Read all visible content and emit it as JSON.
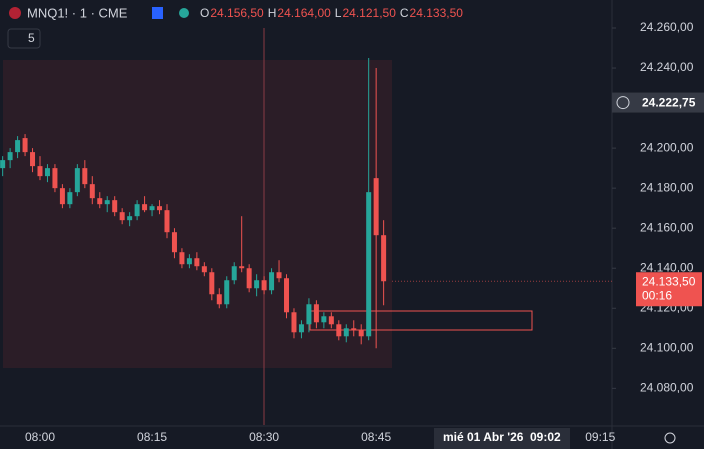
{
  "header": {
    "symbol": "MNQ1! · 1 · CME",
    "ohlc": [
      {
        "label": "O",
        "value": "24.156,50"
      },
      {
        "label": "H",
        "value": "24.164,00"
      },
      {
        "label": "L",
        "value": "24.121,50"
      },
      {
        "label": "C",
        "value": "24.133,50"
      }
    ],
    "indicator_count": "5"
  },
  "chart_data": {
    "type": "candlestick",
    "up_color": "#26a69a",
    "down_color": "#ef5350",
    "x": [
      "07:55",
      "07:56",
      "07:57",
      "07:58",
      "07:59",
      "08:00",
      "08:01",
      "08:02",
      "08:03",
      "08:04",
      "08:05",
      "08:06",
      "08:07",
      "08:08",
      "08:09",
      "08:10",
      "08:11",
      "08:12",
      "08:13",
      "08:14",
      "08:15",
      "08:16",
      "08:17",
      "08:18",
      "08:19",
      "08:20",
      "08:21",
      "08:22",
      "08:23",
      "08:24",
      "08:25",
      "08:26",
      "08:27",
      "08:28",
      "08:29",
      "08:30",
      "08:31",
      "08:32",
      "08:33",
      "08:34",
      "08:35",
      "08:36",
      "08:37",
      "08:38",
      "08:39",
      "08:40",
      "08:41",
      "08:42",
      "08:43",
      "08:44",
      "08:45",
      "08:46"
    ],
    "open": [
      24190,
      24194,
      24198,
      24205,
      24198,
      24191,
      24186,
      24190,
      24180,
      24172,
      24178,
      24190,
      24182,
      24175,
      24172,
      24174,
      24168,
      24164,
      24166,
      24172,
      24169,
      24171,
      24169,
      24158,
      24148,
      24142,
      24145,
      24141,
      24138,
      24127,
      24122,
      24134,
      24141,
      24140,
      24130,
      24134,
      24129,
      24138,
      24135,
      24118,
      24108,
      24112,
      24122,
      24113,
      24116,
      24112,
      24106,
      24110,
      24109,
      24106,
      24185,
      24156.5
    ],
    "high": [
      24196,
      24200,
      24206,
      24207,
      24200,
      24196,
      24192,
      24192,
      24182,
      24180,
      24192,
      24194,
      24186,
      24178,
      24176,
      24176,
      24170,
      24168,
      24174,
      24176,
      24172,
      24174,
      24172,
      24160,
      24150,
      24147,
      24148,
      24143,
      24140,
      24130,
      24136,
      24143,
      24166,
      24142,
      24137,
      24136,
      24140,
      24144,
      24137,
      24120,
      24114,
      24125,
      24124,
      24118,
      24118,
      24114,
      24112,
      24114,
      24112,
      24245,
      24240,
      24164
    ],
    "low": [
      24186,
      24190,
      24195,
      24196,
      24188,
      24184,
      24183,
      24178,
      24170,
      24170,
      24176,
      24180,
      24172,
      24170,
      24168,
      24166,
      24162,
      24161,
      24164,
      24168,
      24166,
      24167,
      24155,
      24145,
      24140,
      24140,
      24139,
      24136,
      24124,
      24120,
      24120,
      24132,
      24138,
      24128,
      24126,
      24127,
      24127,
      24133,
      24115,
      24105,
      24105,
      24108,
      24110,
      24110,
      24110,
      24104,
      24103,
      24106,
      24102,
      24104,
      24100,
      24121.5
    ],
    "close": [
      24194,
      24198,
      24204,
      24198,
      24191,
      24186,
      24190,
      24180,
      24172,
      24178,
      24190,
      24182,
      24175,
      24172,
      24174,
      24168,
      24164,
      24166,
      24172,
      24169,
      24171,
      24169,
      24158,
      24148,
      24142,
      24145,
      24141,
      24138,
      24127,
      24122,
      24134,
      24141,
      24140,
      24130,
      24134,
      24129,
      24138,
      24135,
      24118,
      24108,
      24112,
      24122,
      24113,
      24116,
      24112,
      24106,
      24110,
      24109,
      24106,
      24178,
      24156.5,
      24133.5
    ],
    "ylim": [
      24271.6,
      24061.8
    ],
    "yticks": [
      {
        "value": 24260,
        "label": "24.260,00"
      },
      {
        "value": 24240,
        "label": "24.240,00"
      },
      {
        "value": 24200,
        "label": "24.200,00"
      },
      {
        "value": 24180,
        "label": "24.180,00"
      },
      {
        "value": 24160,
        "label": "24.160,00"
      },
      {
        "value": 24140,
        "label": "24.140,00"
      },
      {
        "value": 24120,
        "label": "24.120,00"
      },
      {
        "value": 24100,
        "label": "24.100,00"
      },
      {
        "value": 24080,
        "label": "24.080,00"
      }
    ],
    "xticks": [
      "08:00",
      "08:15",
      "08:30",
      "08:45",
      "09:15"
    ],
    "last_price": {
      "value": 24133.5,
      "label": "24.133,50"
    },
    "countdown": "00:16",
    "crosshair_price": {
      "value": 24222.75,
      "label": "24.222,75"
    },
    "crosshair_date": "mié 01 Abr '26",
    "crosshair_time": "09:02"
  }
}
